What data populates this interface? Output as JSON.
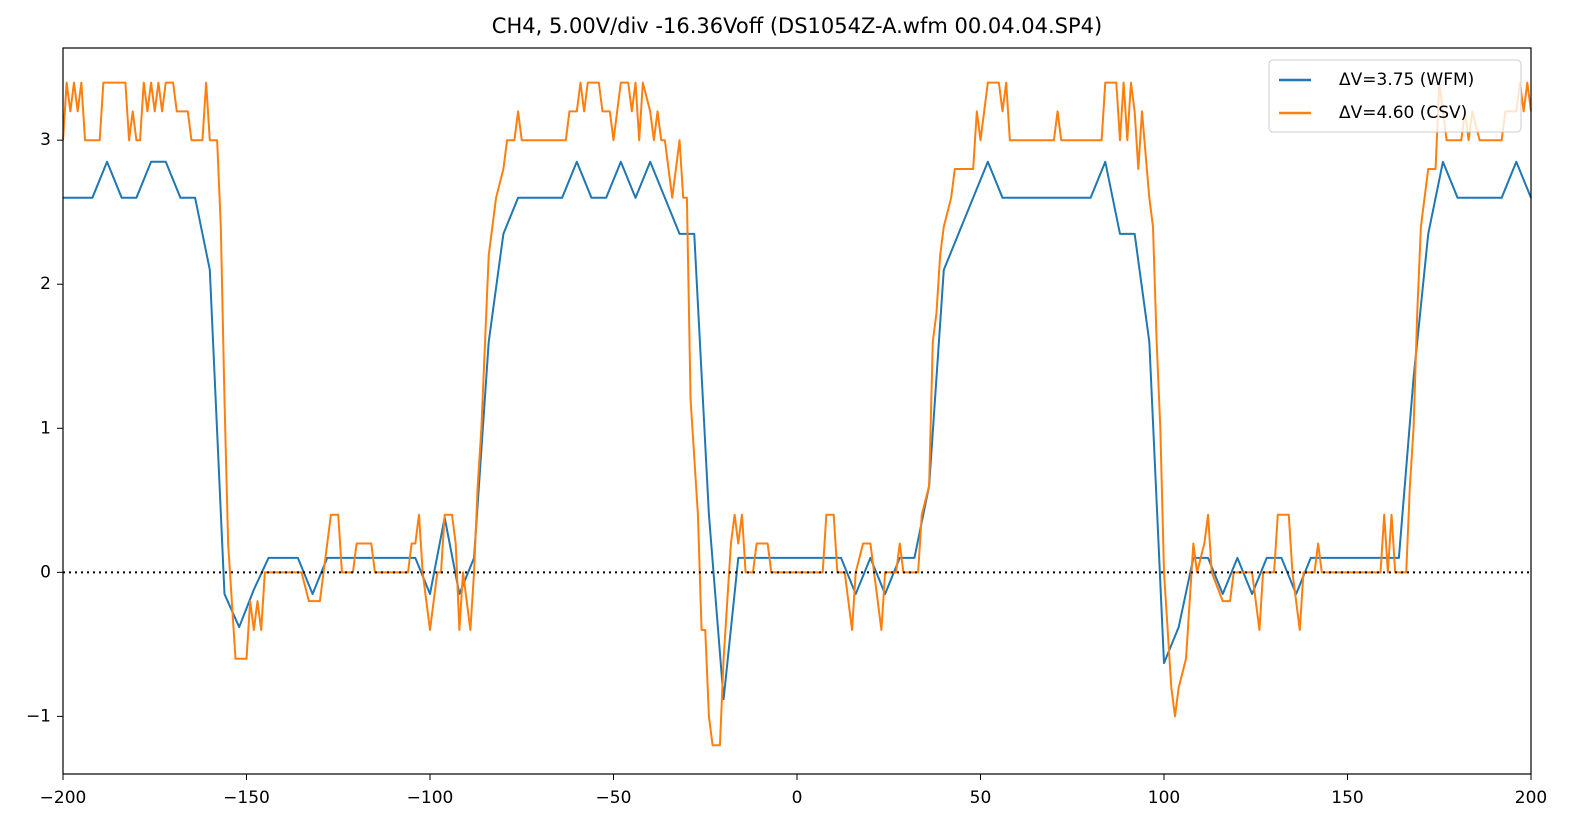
{
  "chart_data": {
    "type": "line",
    "title": "CH4, 5.00V/div -16.36Voff (DS1054Z-A.wfm 00.04.04.SP4)",
    "xlim": [
      -200,
      200
    ],
    "xticks": [
      {
        "value": -200,
        "label": "−200"
      },
      {
        "value": -150,
        "label": "−150"
      },
      {
        "value": -100,
        "label": "−100"
      },
      {
        "value": -50,
        "label": "−50"
      },
      0,
      50,
      100,
      150,
      200
    ],
    "ylim": [
      -1.4,
      3.64
    ],
    "yticks": [
      {
        "value": -1,
        "label": "−1"
      },
      0,
      1,
      2,
      3
    ],
    "hline": 0,
    "legend": "upper right",
    "series": [
      {
        "name": "ΔV=3.75 (WFM)",
        "color": "#1f77b4",
        "x": [
          -200,
          -192,
          -188,
          -184,
          -180,
          -176,
          -172,
          -168,
          -164,
          -160,
          -156,
          -152,
          -148,
          -144,
          -136,
          -132,
          -128,
          -104,
          -100,
          -96,
          -92,
          -88,
          -84,
          -80,
          -76,
          -64,
          -60,
          -56,
          -52,
          -48,
          -44,
          -40,
          -32,
          -28,
          -24,
          -20,
          -16,
          12,
          16,
          20,
          24,
          28,
          32,
          36,
          40,
          52,
          56,
          80,
          84,
          88,
          92,
          96,
          100,
          104,
          108,
          112,
          116,
          120,
          124,
          128,
          132,
          136,
          140,
          164,
          168,
          172,
          176,
          180,
          192,
          196,
          200
        ],
        "values": [
          2.6,
          2.6,
          2.85,
          2.6,
          2.6,
          2.85,
          2.85,
          2.6,
          2.6,
          2.1,
          -0.15,
          -0.38,
          -0.12,
          0.1,
          0.1,
          -0.15,
          0.1,
          0.1,
          -0.15,
          0.38,
          -0.15,
          0.1,
          1.6,
          2.35,
          2.6,
          2.6,
          2.85,
          2.6,
          2.6,
          2.85,
          2.6,
          2.85,
          2.35,
          2.35,
          0.4,
          -0.88,
          0.1,
          0.1,
          -0.15,
          0.1,
          -0.15,
          0.1,
          0.1,
          0.6,
          2.1,
          2.85,
          2.6,
          2.6,
          2.85,
          2.35,
          2.35,
          1.6,
          -0.63,
          -0.38,
          0.1,
          0.1,
          -0.15,
          0.1,
          -0.15,
          0.1,
          0.1,
          -0.15,
          0.1,
          0.1,
          1.35,
          2.35,
          2.85,
          2.6,
          2.6,
          2.85,
          2.6
        ]
      },
      {
        "name": "ΔV=4.60 (CSV)",
        "color": "#ff7f0e",
        "x": [
          -200,
          -199,
          -198,
          -197,
          -196,
          -195,
          -194,
          -190,
          -189,
          -183,
          -182,
          -181,
          -180,
          -179,
          -178,
          -177,
          -176,
          -175,
          -174,
          -173,
          -172,
          -170,
          -169,
          -166,
          -165,
          -162,
          -161,
          -160,
          -158,
          -157,
          -156,
          -155,
          -154,
          -153,
          -150,
          -149,
          -148,
          -147,
          -146,
          -145,
          -135,
          -133,
          -130,
          -129,
          -127,
          -125,
          -124,
          -121,
          -120,
          -116,
          -115,
          -106,
          -105,
          -104,
          -103,
          -102,
          -101,
          -100,
          -99,
          -98,
          -97,
          -96,
          -94,
          -93,
          -92,
          -91,
          -90,
          -89,
          -88,
          -87,
          -86,
          -85,
          -84,
          -83,
          -82,
          -80,
          -79,
          -77,
          -76,
          -75,
          -63,
          -62,
          -60,
          -59,
          -58,
          -57,
          -54,
          -53,
          -51,
          -50,
          -49,
          -48,
          -46,
          -45,
          -44,
          -43,
          -42,
          -40,
          -39,
          -38,
          -37,
          -36,
          -35,
          -34,
          -33,
          -32,
          -31,
          -30,
          -29,
          -28,
          -27,
          -26,
          -25,
          -24,
          -23,
          -21,
          -20,
          -19,
          -18,
          -17,
          -16,
          -15,
          -14,
          -12,
          -11,
          -8,
          -7,
          7,
          8,
          10,
          11,
          13,
          14,
          15,
          16,
          18,
          20,
          21,
          22,
          23,
          24,
          27,
          28,
          29,
          33,
          34,
          36,
          37,
          38,
          39,
          40,
          42,
          43,
          48,
          49,
          50,
          51,
          52,
          55,
          56,
          57,
          58,
          70,
          71,
          72,
          83,
          84,
          87,
          88,
          89,
          90,
          91,
          92,
          93,
          94,
          96,
          97,
          98,
          99,
          100,
          101,
          102,
          103,
          104,
          106,
          107,
          108,
          109,
          111,
          112,
          113,
          116,
          118,
          119,
          124,
          125,
          126,
          127,
          130,
          131,
          134,
          135,
          136,
          137,
          138,
          141,
          142,
          143,
          159,
          160,
          161,
          162,
          163,
          166,
          167,
          168,
          169,
          170,
          171,
          172,
          174,
          175,
          176,
          177,
          181,
          182,
          183,
          184,
          186,
          192,
          193,
          196,
          197,
          198,
          199,
          200
        ],
        "values": [
          3.0,
          3.4,
          3.2,
          3.4,
          3.2,
          3.4,
          3.0,
          3.0,
          3.4,
          3.4,
          3.0,
          3.2,
          3.0,
          3.0,
          3.4,
          3.2,
          3.4,
          3.2,
          3.4,
          3.2,
          3.4,
          3.4,
          3.2,
          3.2,
          3.0,
          3.0,
          3.4,
          3.0,
          3.0,
          2.4,
          1.2,
          0.2,
          -0.2,
          -0.6,
          -0.6,
          -0.2,
          -0.4,
          -0.2,
          -0.4,
          0.0,
          0.0,
          -0.2,
          -0.2,
          0.0,
          0.4,
          0.4,
          0.0,
          0.0,
          0.2,
          0.2,
          0.0,
          0.0,
          0.2,
          0.2,
          0.4,
          0.0,
          -0.2,
          -0.4,
          -0.2,
          0.0,
          0.0,
          0.4,
          0.4,
          0.2,
          -0.4,
          0.0,
          -0.2,
          -0.4,
          0.0,
          0.6,
          1.0,
          1.6,
          2.2,
          2.4,
          2.6,
          2.8,
          3.0,
          3.0,
          3.2,
          3.0,
          3.0,
          3.2,
          3.2,
          3.4,
          3.2,
          3.4,
          3.4,
          3.2,
          3.2,
          3.0,
          3.2,
          3.4,
          3.4,
          3.2,
          3.4,
          3.0,
          3.4,
          3.2,
          3.0,
          3.2,
          3.0,
          3.0,
          2.8,
          2.6,
          2.8,
          3.0,
          2.6,
          2.6,
          1.2,
          0.8,
          0.4,
          -0.4,
          -0.4,
          -1.0,
          -1.2,
          -1.2,
          -0.6,
          -0.2,
          0.2,
          0.4,
          0.2,
          0.4,
          0.0,
          0.0,
          0.2,
          0.2,
          0.0,
          0.0,
          0.4,
          0.4,
          0.0,
          0.0,
          -0.2,
          -0.4,
          0.0,
          0.2,
          0.2,
          0.0,
          -0.2,
          -0.4,
          0.0,
          0.0,
          0.2,
          0.0,
          0.0,
          0.4,
          0.6,
          1.6,
          1.8,
          2.2,
          2.4,
          2.6,
          2.8,
          2.8,
          3.2,
          3.0,
          3.2,
          3.4,
          3.4,
          3.2,
          3.4,
          3.0,
          3.0,
          3.2,
          3.0,
          3.0,
          3.4,
          3.4,
          3.0,
          3.4,
          3.0,
          3.4,
          3.2,
          2.8,
          3.2,
          2.6,
          2.4,
          1.6,
          1.0,
          0.0,
          -0.4,
          -0.8,
          -1.0,
          -0.8,
          -0.6,
          -0.2,
          0.2,
          0.0,
          0.2,
          0.4,
          0.0,
          -0.2,
          -0.2,
          0.0,
          0.0,
          -0.2,
          -0.4,
          0.0,
          0.0,
          0.4,
          0.4,
          0.0,
          -0.2,
          -0.4,
          0.0,
          0.0,
          0.2,
          0.0,
          0.0,
          0.4,
          0.0,
          0.4,
          0.0,
          0.0,
          0.6,
          1.0,
          1.8,
          2.4,
          2.6,
          2.8,
          2.8,
          3.4,
          3.2,
          3.0,
          3.0,
          3.2,
          3.0,
          3.2,
          3.0,
          3.0,
          3.2,
          3.2,
          3.4,
          3.2,
          3.4,
          3.2
        ]
      }
    ]
  }
}
